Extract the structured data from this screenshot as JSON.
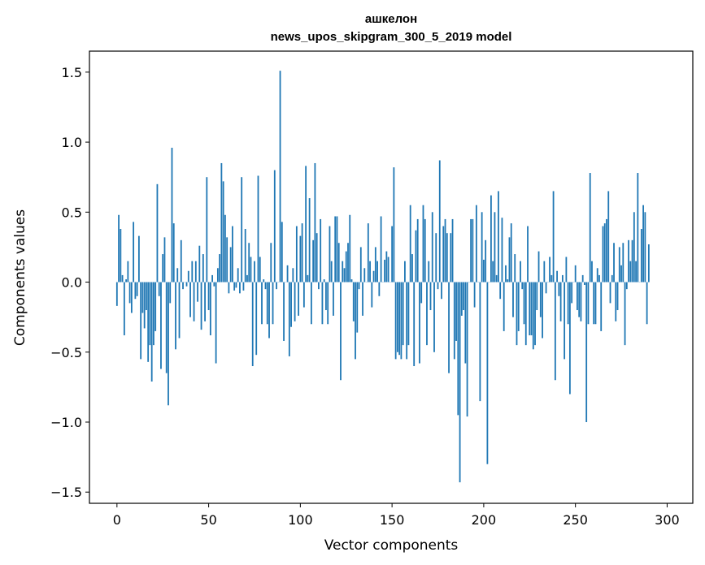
{
  "chart_data": {
    "type": "bar",
    "title_line1": "ашкелон",
    "title_line2": "news_upos_skipgram_300_5_2019 model",
    "xlabel": "Vector components",
    "ylabel": "Components values",
    "xlim": [
      -15,
      314
    ],
    "ylim": [
      -1.58,
      1.65
    ],
    "x_ticks": [
      {
        "value": 0,
        "label": "0"
      },
      {
        "value": 50,
        "label": "50"
      },
      {
        "value": 100,
        "label": "100"
      },
      {
        "value": 150,
        "label": "150"
      },
      {
        "value": 200,
        "label": "200"
      },
      {
        "value": 250,
        "label": "250"
      },
      {
        "value": 300,
        "label": "300"
      }
    ],
    "y_ticks": [
      {
        "value": 1.5,
        "label": "1.5"
      },
      {
        "value": 1.0,
        "label": "1.0"
      },
      {
        "value": 0.5,
        "label": "0.5"
      },
      {
        "value": 0.0,
        "label": "0.0"
      },
      {
        "value": -0.5,
        "label": "−0.5"
      },
      {
        "value": -1.0,
        "label": "−1.0"
      },
      {
        "value": -1.5,
        "label": "−1.5"
      }
    ],
    "bar_color": "#1f77b4",
    "values": [
      -0.17,
      0.48,
      0.38,
      0.05,
      -0.38,
      0.02,
      0.15,
      -0.15,
      -0.22,
      0.43,
      -0.12,
      -0.1,
      0.33,
      -0.55,
      -0.22,
      -0.33,
      -0.2,
      -0.57,
      -0.45,
      -0.71,
      -0.45,
      -0.35,
      0.7,
      -0.1,
      -0.62,
      0.2,
      0.32,
      -0.65,
      -0.88,
      -0.15,
      0.96,
      0.42,
      -0.48,
      0.1,
      -0.4,
      0.3,
      -0.05,
      0.0,
      -0.03,
      0.08,
      -0.25,
      0.15,
      -0.28,
      0.15,
      -0.14,
      0.26,
      -0.34,
      0.2,
      -0.28,
      0.75,
      -0.2,
      -0.38,
      0.05,
      -0.03,
      -0.58,
      0.1,
      0.2,
      0.85,
      0.72,
      0.48,
      0.32,
      -0.08,
      0.25,
      0.4,
      -0.06,
      -0.04,
      0.1,
      -0.08,
      0.75,
      -0.06,
      0.38,
      0.05,
      0.28,
      0.18,
      -0.6,
      0.15,
      -0.52,
      0.76,
      0.18,
      -0.3,
      0.02,
      -0.05,
      -0.3,
      -0.4,
      0.28,
      -0.3,
      0.8,
      -0.05,
      0.0,
      1.51,
      0.43,
      -0.42,
      0.0,
      0.12,
      -0.53,
      -0.32,
      0.1,
      -0.28,
      0.4,
      -0.24,
      0.33,
      0.42,
      -0.18,
      0.83,
      0.05,
      0.6,
      -0.3,
      0.3,
      0.85,
      0.35,
      -0.05,
      0.45,
      -0.3,
      0.02,
      -0.2,
      -0.3,
      0.4,
      0.15,
      -0.24,
      0.47,
      0.47,
      0.28,
      -0.7,
      0.15,
      0.1,
      0.22,
      0.28,
      0.48,
      0.02,
      -0.28,
      -0.55,
      -0.36,
      -0.05,
      0.25,
      -0.24,
      0.1,
      0.0,
      0.42,
      0.15,
      -0.18,
      0.08,
      0.25,
      0.15,
      -0.1,
      0.47,
      0.0,
      0.16,
      0.22,
      0.18,
      0.0,
      0.4,
      0.82,
      -0.55,
      -0.5,
      -0.52,
      -0.55,
      -0.45,
      0.15,
      -0.55,
      -0.45,
      0.55,
      0.2,
      -0.6,
      0.37,
      0.45,
      -0.58,
      -0.15,
      0.55,
      0.45,
      -0.45,
      0.15,
      -0.2,
      0.5,
      -0.5,
      0.35,
      -0.05,
      0.87,
      -0.12,
      0.4,
      0.45,
      0.35,
      -0.65,
      0.35,
      0.45,
      -0.55,
      -0.42,
      -0.95,
      -1.43,
      -0.24,
      -0.2,
      -0.58,
      -0.96,
      0.0,
      0.45,
      0.45,
      -0.18,
      0.55,
      0.0,
      -0.85,
      0.5,
      0.16,
      0.3,
      -1.3,
      0.0,
      0.62,
      0.15,
      0.5,
      0.05,
      0.65,
      -0.12,
      0.46,
      -0.35,
      0.12,
      0.02,
      0.32,
      0.42,
      -0.25,
      0.2,
      -0.45,
      -0.35,
      0.15,
      -0.05,
      -0.3,
      -0.45,
      0.4,
      -0.38,
      -0.38,
      -0.48,
      -0.45,
      -0.2,
      0.22,
      -0.25,
      -0.4,
      0.15,
      -0.08,
      0.0,
      0.18,
      0.05,
      0.65,
      -0.7,
      0.08,
      -0.1,
      -0.28,
      0.05,
      -0.55,
      0.18,
      -0.3,
      -0.8,
      -0.15,
      0.0,
      0.12,
      -0.2,
      -0.25,
      -0.28,
      0.05,
      -0.02,
      -1.0,
      -0.3,
      0.78,
      0.15,
      -0.3,
      -0.3,
      0.1,
      0.05,
      -0.35,
      0.4,
      0.42,
      0.45,
      0.65,
      -0.15,
      0.05,
      0.28,
      -0.28,
      -0.2,
      0.25,
      0.12,
      0.28,
      -0.45,
      -0.05,
      0.3,
      0.15,
      0.3,
      0.5,
      0.15,
      0.78,
      0.0,
      0.38,
      0.55,
      0.5,
      -0.3,
      0.27
    ]
  }
}
